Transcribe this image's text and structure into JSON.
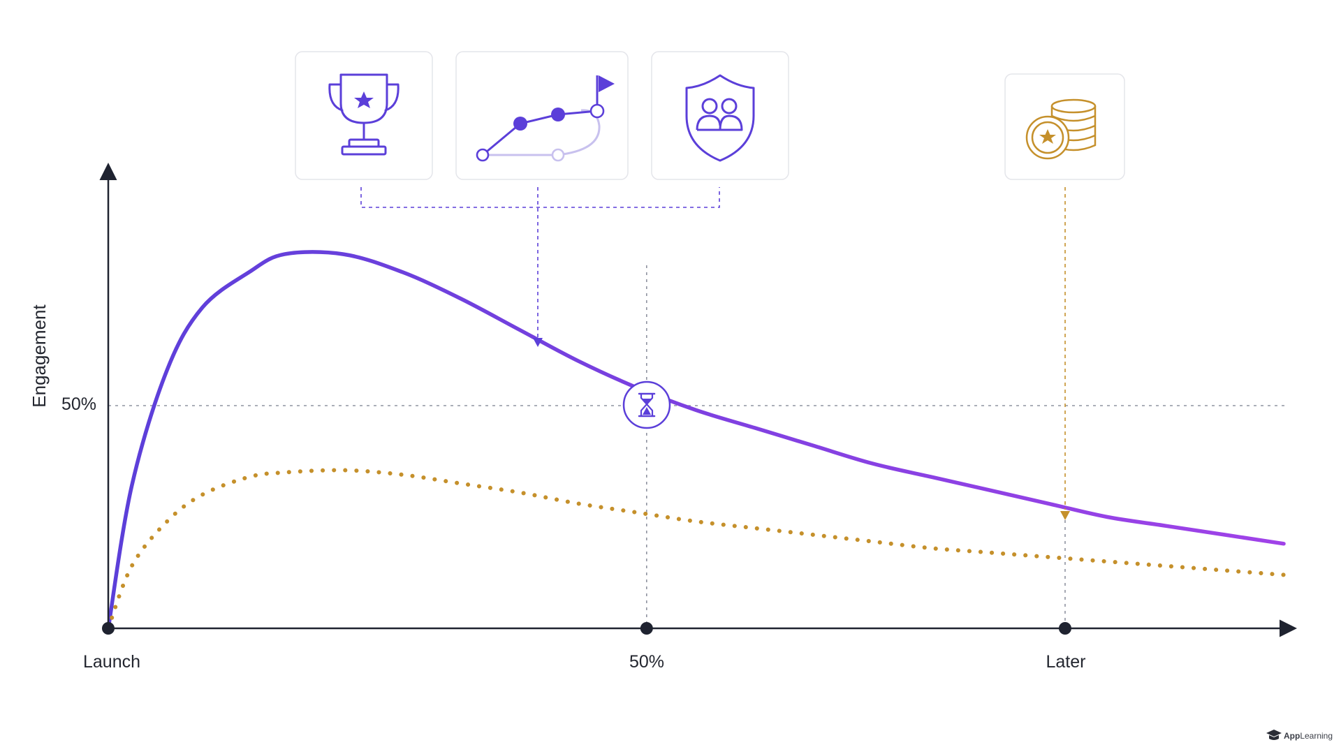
{
  "chart_data": {
    "type": "line",
    "title": "",
    "xlabel": "",
    "ylabel": "Engagement",
    "x_ticks": [
      "Launch",
      "50%",
      "Later"
    ],
    "y_ticks": [
      "50%"
    ],
    "ylim": [
      0,
      100
    ],
    "xlim": [
      0,
      100
    ],
    "grid": false,
    "series": [
      {
        "color": "#7b4ae8",
        "style": "solid",
        "x": [
          0,
          2,
          5,
          8,
          12,
          15,
          20,
          25,
          30,
          35,
          40,
          45,
          50,
          55,
          60,
          65,
          70,
          75,
          80,
          85,
          90,
          95,
          100
        ],
        "y": [
          0,
          32,
          58,
          72,
          80,
          84,
          84,
          80,
          74,
          67,
          60,
          54,
          49,
          45,
          41,
          37,
          34,
          31,
          28,
          25,
          23,
          21,
          19
        ]
      },
      {
        "color": "#c5902b",
        "style": "dotted",
        "x": [
          0,
          2,
          5,
          8,
          12,
          15,
          20,
          25,
          30,
          35,
          40,
          45,
          50,
          55,
          60,
          65,
          70,
          75,
          80,
          85,
          90,
          95,
          100
        ],
        "y": [
          0,
          14,
          24,
          30,
          34,
          35,
          35.5,
          34.5,
          32.5,
          30.5,
          28,
          26,
          24,
          22.5,
          21,
          19.5,
          18,
          17,
          16,
          15,
          14,
          13,
          12
        ]
      }
    ],
    "markers": [
      {
        "x": 0,
        "label": "Launch"
      },
      {
        "x": 45.8,
        "label": "50%"
      },
      {
        "x": 81.4,
        "label": "Later"
      }
    ],
    "annotations": [
      {
        "icon": "hourglass-icon",
        "x": 45.8,
        "y": 50
      }
    ]
  },
  "icons": {
    "group_early": [
      "trophy-icon",
      "progress-path-icon",
      "shield-community-icon"
    ],
    "group_late": [
      "coins-icon"
    ],
    "colors": {
      "accent": "#5b3fd9",
      "gold": "#c5902b",
      "axis": "#1f2330",
      "guide": "#8f93a0"
    }
  },
  "brand": {
    "name_bold": "App",
    "name_light": "Learning"
  }
}
